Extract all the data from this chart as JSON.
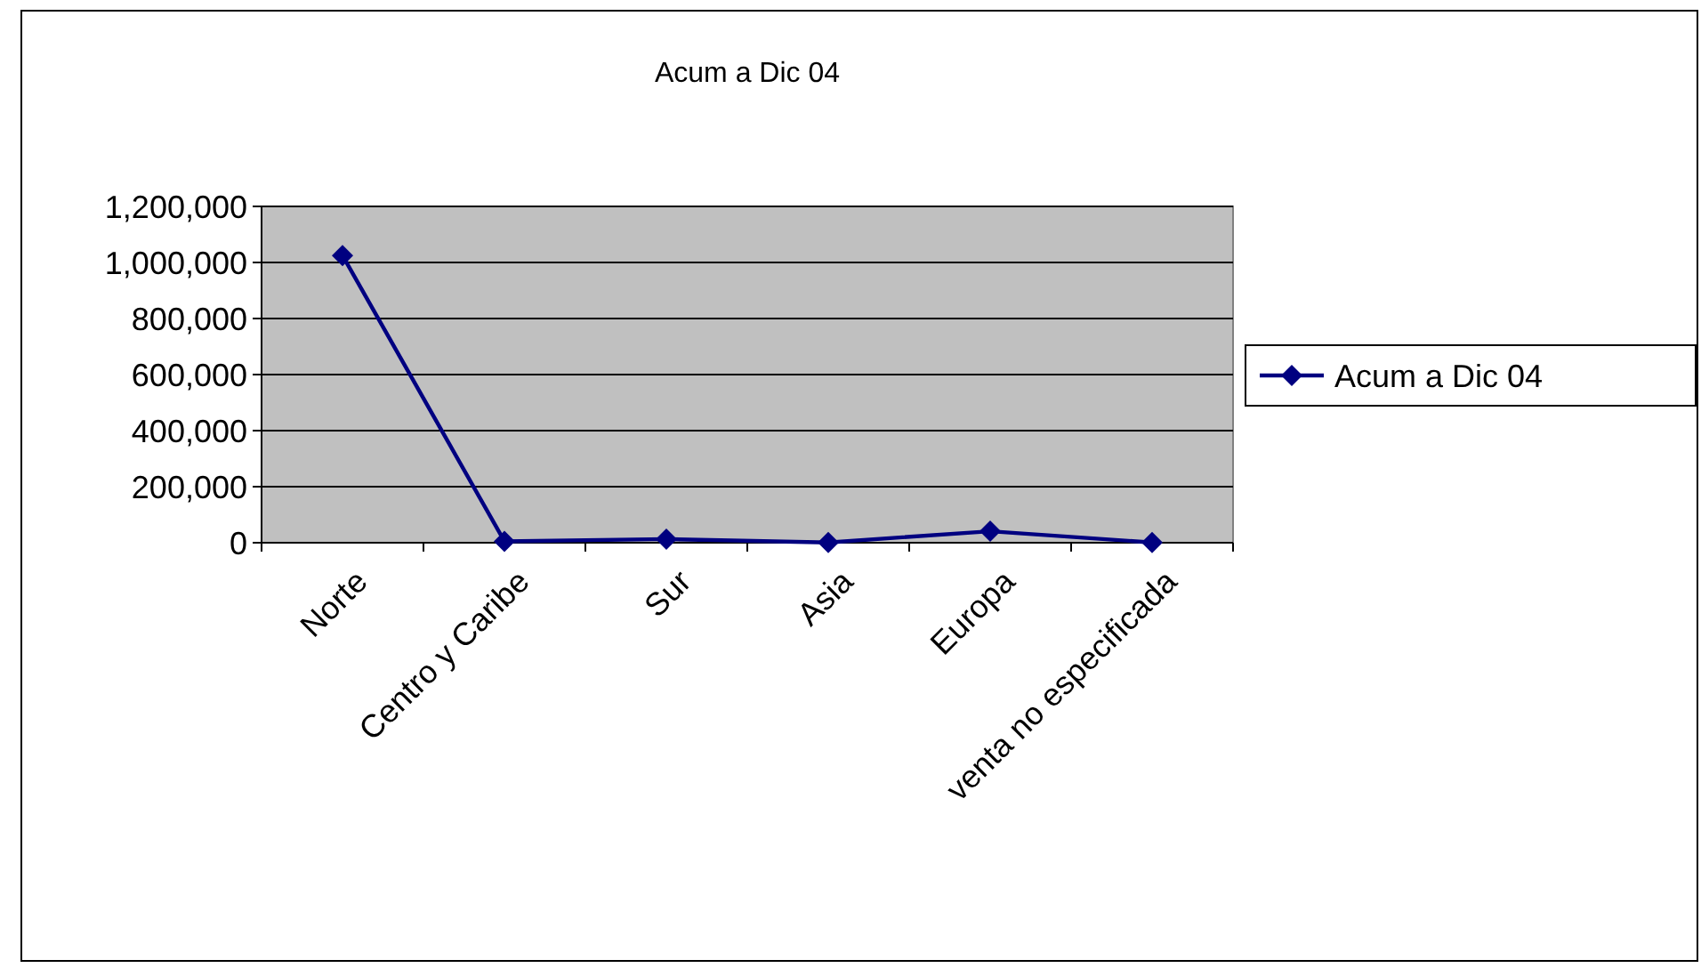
{
  "chart_data": {
    "type": "line",
    "title": "Acum a Dic 04",
    "categories": [
      "Norte",
      "Centro y Caribe",
      "Sur",
      "Asia",
      "Europa",
      "venta no especificada"
    ],
    "series": [
      {
        "name": "Acum a Dic 04",
        "color": "#000080",
        "values": [
          1025000,
          5000,
          13000,
          1000,
          41000,
          1000
        ]
      }
    ],
    "ylim": [
      0,
      1200000
    ],
    "yticks": [
      {
        "value": 0,
        "label": "0"
      },
      {
        "value": 200000,
        "label": "200,000"
      },
      {
        "value": 400000,
        "label": "400,000"
      },
      {
        "value": 600000,
        "label": "600,000"
      },
      {
        "value": 800000,
        "label": "800,000"
      },
      {
        "value": 1000000,
        "label": "1,000,000"
      },
      {
        "value": 1200000,
        "label": "1,200,000"
      }
    ],
    "grid": "y",
    "legend": "right",
    "marker": "diamond"
  }
}
